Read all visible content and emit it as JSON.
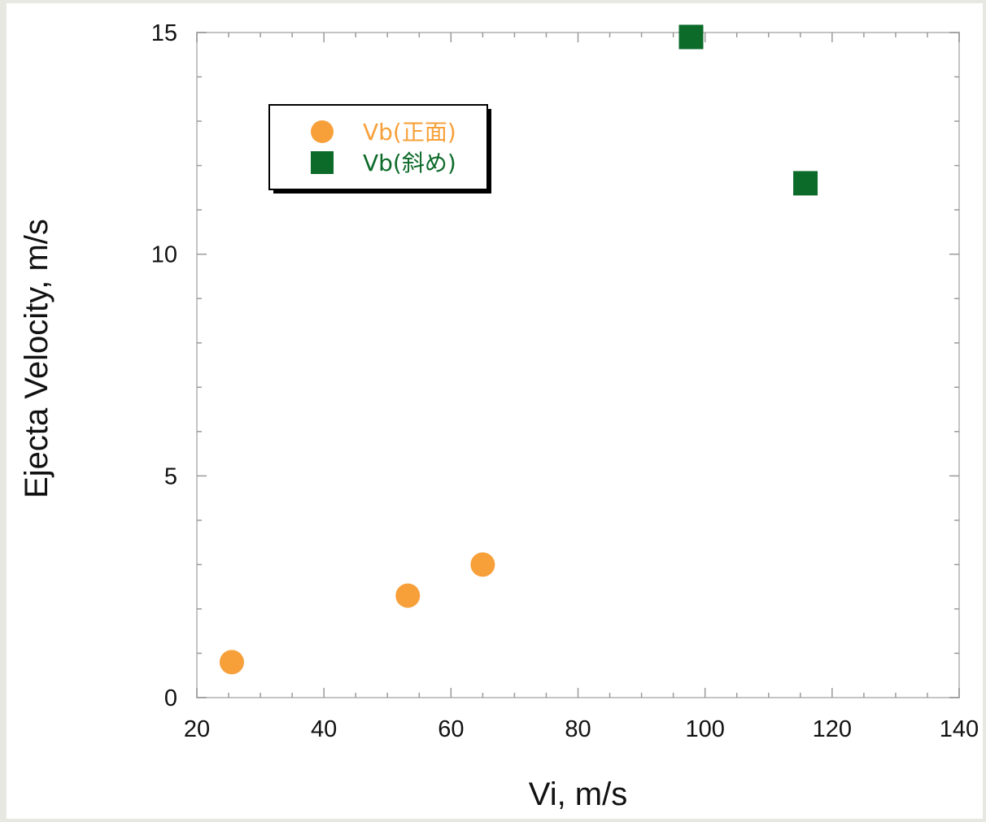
{
  "chart_data": {
    "type": "scatter",
    "xlabel": "Vi, m/s",
    "ylabel": "Ejecta Velocity, m/s",
    "xlim": [
      20,
      140
    ],
    "ylim": [
      0,
      15
    ],
    "x_ticks": [
      "20",
      "40",
      "60",
      "80",
      "100",
      "120",
      "140"
    ],
    "y_ticks": [
      "0",
      "5",
      "10",
      "15"
    ],
    "grid": false,
    "legend_position": "top-left",
    "series": [
      {
        "name": "Vb(正面)",
        "marker": "circle",
        "color": "#f7a03a",
        "points": [
          {
            "x": 25.5,
            "y": 0.8
          },
          {
            "x": 53.2,
            "y": 2.3
          },
          {
            "x": 65.0,
            "y": 3.0
          }
        ]
      },
      {
        "name": "Vb(斜め)",
        "marker": "square",
        "color": "#0d6b2a",
        "points": [
          {
            "x": 97.8,
            "y": 14.9
          },
          {
            "x": 115.8,
            "y": 11.6
          }
        ]
      }
    ]
  }
}
